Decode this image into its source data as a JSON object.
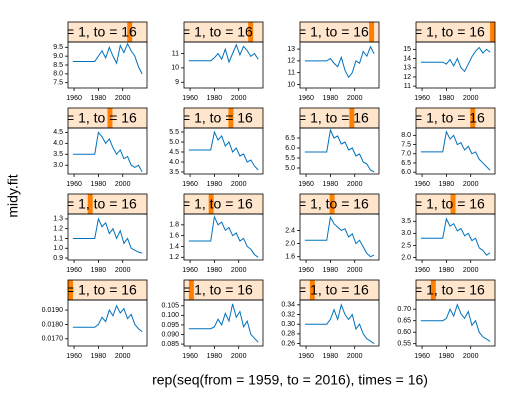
{
  "xlabel": "rep(seq(from = 1959, to = 2016), times = 16)",
  "ylabel": "midy.fit",
  "levels": 16,
  "chart_data": [
    {
      "type": "line",
      "strip": "= 1, to = 16",
      "level": 13,
      "x": [
        1959,
        1962,
        1965,
        1968,
        1971,
        1974,
        1977,
        1980,
        1983,
        1986,
        1989,
        1992,
        1995,
        1998,
        2001,
        2004,
        2007,
        2010,
        2013,
        2016
      ],
      "series": [
        {
          "color": "#0072bd",
          "values": [
            8.7,
            8.7,
            8.7,
            8.7,
            8.7,
            8.7,
            8.7,
            9.0,
            9.3,
            8.9,
            9.5,
            9.0,
            8.6,
            9.6,
            9.2,
            9.7,
            9.3,
            9.0,
            8.4,
            8.0
          ]
        }
      ],
      "xlim": [
        1955,
        2020
      ],
      "xticks": [
        1960,
        1980,
        2000
      ],
      "ylim": [
        7.2,
        9.8
      ],
      "yticks": [
        7.5,
        {
          "value": 8,
          "label": "8.0"
        },
        8.5,
        {
          "value": 9,
          "label": "9.0"
        },
        9.5
      ]
    },
    {
      "type": "line",
      "strip": "= 1, to = 16",
      "level": 14,
      "x": [
        1959,
        1962,
        1965,
        1968,
        1971,
        1974,
        1977,
        1980,
        1983,
        1986,
        1989,
        1992,
        1995,
        1998,
        2001,
        2004,
        2007,
        2010,
        2013,
        2016
      ],
      "series": [
        {
          "color": "#0072bd",
          "values": [
            10.5,
            10.5,
            10.5,
            10.5,
            10.5,
            10.5,
            10.5,
            10.7,
            11.0,
            10.6,
            11.3,
            10.4,
            11.0,
            11.6,
            10.9,
            11.5,
            11.2,
            10.8,
            11.0,
            10.6
          ]
        }
      ],
      "xlim": [
        1955,
        2020
      ],
      "xticks": [
        1960,
        1980,
        2000
      ],
      "ylim": [
        8.6,
        11.8
      ],
      "yticks": [
        9,
        10,
        11
      ]
    },
    {
      "type": "line",
      "strip": "= 1, to = 16",
      "level": 15,
      "x": [
        1959,
        1962,
        1965,
        1968,
        1971,
        1974,
        1977,
        1980,
        1983,
        1986,
        1989,
        1992,
        1995,
        1998,
        2001,
        2004,
        2007,
        2010,
        2013,
        2016
      ],
      "series": [
        {
          "color": "#0072bd",
          "values": [
            12,
            12,
            12,
            12,
            12,
            12,
            12,
            12.2,
            11.8,
            11.5,
            12.3,
            11.2,
            10.6,
            11.0,
            12.0,
            11.8,
            12.8,
            12.4,
            13.2,
            12.6
          ]
        }
      ],
      "xlim": [
        1955,
        2020
      ],
      "xticks": [
        1960,
        1980,
        2000
      ],
      "ylim": [
        9.7,
        13.6
      ],
      "yticks": [
        10,
        11,
        12,
        13
      ]
    },
    {
      "type": "line",
      "strip": "= 1, to = 16",
      "level": 16,
      "x": [
        1959,
        1962,
        1965,
        1968,
        1971,
        1974,
        1977,
        1980,
        1983,
        1986,
        1989,
        1992,
        1995,
        1998,
        2001,
        2004,
        2007,
        2010,
        2013,
        2016
      ],
      "series": [
        {
          "color": "#0072bd",
          "values": [
            13.6,
            13.6,
            13.6,
            13.6,
            13.6,
            13.6,
            13.6,
            13.4,
            13.9,
            13.2,
            14.0,
            13.0,
            12.6,
            13.4,
            14.2,
            14.8,
            15.2,
            14.6,
            15.0,
            14.7
          ]
        }
      ],
      "xlim": [
        1955,
        2020
      ],
      "xticks": [
        1960,
        1980,
        2000
      ],
      "ylim": [
        10.8,
        15.8
      ],
      "yticks": [
        11,
        12,
        13,
        14,
        15
      ]
    },
    {
      "type": "line",
      "strip": "= 1, to = 16",
      "level": 9,
      "x": [
        1959,
        1962,
        1965,
        1968,
        1971,
        1974,
        1977,
        1980,
        1983,
        1986,
        1989,
        1992,
        1995,
        1998,
        2001,
        2004,
        2007,
        2010,
        2013,
        2016
      ],
      "series": [
        {
          "color": "#0072bd",
          "values": [
            3.5,
            3.5,
            3.5,
            3.5,
            3.5,
            3.5,
            3.5,
            4.5,
            4.3,
            4.0,
            4.2,
            3.8,
            3.5,
            3.7,
            3.3,
            3.4,
            3.0,
            2.9,
            3.0,
            2.7
          ]
        }
      ],
      "xlim": [
        1955,
        2020
      ],
      "xticks": [
        1960,
        1980,
        2000
      ],
      "ylim": [
        2.6,
        4.7
      ],
      "yticks": [
        {
          "value": 3,
          "label": "3.0"
        },
        3.5,
        {
          "value": 4,
          "label": "4.0"
        },
        4.5
      ]
    },
    {
      "type": "line",
      "strip": "= 1, to = 16",
      "level": 10,
      "x": [
        1959,
        1962,
        1965,
        1968,
        1971,
        1974,
        1977,
        1980,
        1983,
        1986,
        1989,
        1992,
        1995,
        1998,
        2001,
        2004,
        2007,
        2010,
        2013,
        2016
      ],
      "series": [
        {
          "color": "#0072bd",
          "values": [
            4.6,
            4.6,
            4.6,
            4.6,
            4.6,
            4.6,
            4.6,
            5.5,
            5.1,
            5.3,
            4.8,
            5.0,
            4.5,
            4.7,
            4.3,
            4.4,
            4.0,
            4.1,
            3.8,
            3.6
          ]
        }
      ],
      "xlim": [
        1955,
        2020
      ],
      "xticks": [
        1960,
        1980,
        2000
      ],
      "ylim": [
        3.4,
        5.7
      ],
      "yticks": [
        3.5,
        {
          "value": 4,
          "label": "4.0"
        },
        4.5,
        {
          "value": 5,
          "label": "5.0"
        },
        5.5
      ]
    },
    {
      "type": "line",
      "strip": "= 1, to = 16",
      "level": 11,
      "x": [
        1959,
        1962,
        1965,
        1968,
        1971,
        1974,
        1977,
        1980,
        1983,
        1986,
        1989,
        1992,
        1995,
        1998,
        2001,
        2004,
        2007,
        2010,
        2013,
        2016
      ],
      "series": [
        {
          "color": "#0072bd",
          "values": [
            5.8,
            5.8,
            5.8,
            5.8,
            5.8,
            5.8,
            5.8,
            6.9,
            6.5,
            6.6,
            6.2,
            6.3,
            5.9,
            6.0,
            5.6,
            5.7,
            5.3,
            5.2,
            4.9,
            4.8
          ]
        }
      ],
      "xlim": [
        1955,
        2020
      ],
      "xticks": [
        1960,
        1980,
        2000
      ],
      "ylim": [
        4.7,
        7.0
      ],
      "yticks": [
        {
          "value": 5,
          "label": "5.0"
        },
        5.5,
        {
          "value": 6,
          "label": "6.0"
        },
        6.5
      ]
    },
    {
      "type": "line",
      "strip": "= 1, to = 16",
      "level": 12,
      "x": [
        1959,
        1962,
        1965,
        1968,
        1971,
        1974,
        1977,
        1980,
        1983,
        1986,
        1989,
        1992,
        1995,
        1998,
        2001,
        2004,
        2007,
        2010,
        2013,
        2016
      ],
      "series": [
        {
          "color": "#0072bd",
          "values": [
            7.1,
            7.1,
            7.1,
            7.1,
            7.1,
            7.1,
            7.1,
            8.2,
            7.8,
            8.0,
            7.5,
            7.6,
            7.2,
            7.4,
            7.0,
            7.1,
            6.7,
            6.5,
            6.3,
            6.1
          ]
        }
      ],
      "xlim": [
        1955,
        2020
      ],
      "xticks": [
        1960,
        1980,
        2000
      ],
      "ylim": [
        5.9,
        8.4
      ],
      "yticks": [
        {
          "value": 6,
          "label": "6.0"
        },
        6.5,
        {
          "value": 7,
          "label": "7.0"
        },
        7.5,
        {
          "value": 8,
          "label": "8.0"
        }
      ]
    },
    {
      "type": "line",
      "strip": "= 1, to = 16",
      "level": 5,
      "x": [
        1959,
        1962,
        1965,
        1968,
        1971,
        1974,
        1977,
        1980,
        1983,
        1986,
        1989,
        1992,
        1995,
        1998,
        2001,
        2004,
        2007,
        2010,
        2013,
        2016
      ],
      "series": [
        {
          "color": "#0072bd",
          "values": [
            1.1,
            1.1,
            1.1,
            1.1,
            1.1,
            1.1,
            1.1,
            1.3,
            1.22,
            1.26,
            1.15,
            1.2,
            1.1,
            1.18,
            1.05,
            1.1,
            1.0,
            0.98,
            0.96,
            0.95
          ]
        }
      ],
      "xlim": [
        1955,
        2020
      ],
      "xticks": [
        1960,
        1980,
        2000
      ],
      "ylim": [
        0.88,
        1.35
      ],
      "yticks": [
        0.9,
        {
          "value": 1,
          "label": "1.0"
        },
        1.1,
        1.2,
        1.3
      ]
    },
    {
      "type": "line",
      "strip": "= 1, to = 16",
      "level": 6,
      "x": [
        1959,
        1962,
        1965,
        1968,
        1971,
        1974,
        1977,
        1980,
        1983,
        1986,
        1989,
        1992,
        1995,
        1998,
        2001,
        2004,
        2007,
        2010,
        2013,
        2016
      ],
      "series": [
        {
          "color": "#0072bd",
          "values": [
            1.5,
            1.5,
            1.5,
            1.5,
            1.5,
            1.5,
            1.5,
            1.95,
            1.8,
            1.85,
            1.7,
            1.75,
            1.6,
            1.65,
            1.5,
            1.55,
            1.4,
            1.35,
            1.25,
            1.2
          ]
        }
      ],
      "xlim": [
        1955,
        2020
      ],
      "xticks": [
        1960,
        1980,
        2000
      ],
      "ylim": [
        1.15,
        2.0
      ],
      "yticks": [
        1.2,
        1.4,
        1.6,
        1.8
      ]
    },
    {
      "type": "line",
      "strip": "= 1, to = 16",
      "level": 7,
      "x": [
        1959,
        1962,
        1965,
        1968,
        1971,
        1974,
        1977,
        1980,
        1983,
        1986,
        1989,
        1992,
        1995,
        1998,
        2001,
        2004,
        2007,
        2010,
        2013,
        2016
      ],
      "series": [
        {
          "color": "#0072bd",
          "values": [
            2.1,
            2.1,
            2.1,
            2.1,
            2.1,
            2.1,
            2.1,
            2.8,
            2.6,
            2.5,
            2.4,
            2.45,
            2.2,
            2.3,
            2.0,
            2.1,
            1.9,
            1.7,
            1.6,
            1.65
          ]
        }
      ],
      "xlim": [
        1955,
        2020
      ],
      "xticks": [
        1960,
        1980,
        2000
      ],
      "ylim": [
        1.5,
        2.9
      ],
      "yticks": [
        1.6,
        {
          "value": 2,
          "label": "2.0"
        },
        2.4
      ]
    },
    {
      "type": "line",
      "strip": "= 1, to = 16",
      "level": 8,
      "x": [
        1959,
        1962,
        1965,
        1968,
        1971,
        1974,
        1977,
        1980,
        1983,
        1986,
        1989,
        1992,
        1995,
        1998,
        2001,
        2004,
        2007,
        2010,
        2013,
        2016
      ],
      "series": [
        {
          "color": "#0072bd",
          "values": [
            2.8,
            2.8,
            2.8,
            2.8,
            2.8,
            2.8,
            2.8,
            3.6,
            3.3,
            3.4,
            3.1,
            3.2,
            2.9,
            3.0,
            2.7,
            2.8,
            2.4,
            2.3,
            2.1,
            2.2
          ]
        }
      ],
      "xlim": [
        1955,
        2020
      ],
      "xticks": [
        1960,
        1980,
        2000
      ],
      "ylim": [
        1.9,
        3.8
      ],
      "yticks": [
        {
          "value": 2,
          "label": "2.0"
        },
        2.5,
        {
          "value": 3,
          "label": "3.0"
        },
        3.5
      ]
    },
    {
      "type": "line",
      "strip": "= 1, to = 16",
      "level": 1,
      "x": [
        1959,
        1962,
        1965,
        1968,
        1971,
        1974,
        1977,
        1980,
        1983,
        1986,
        1989,
        1992,
        1995,
        1998,
        2001,
        2004,
        2007,
        2010,
        2013,
        2016
      ],
      "series": [
        {
          "color": "#0072bd",
          "values": [
            0.0178,
            0.0178,
            0.0178,
            0.0178,
            0.0178,
            0.0178,
            0.0178,
            0.018,
            0.0185,
            0.0182,
            0.019,
            0.0186,
            0.0193,
            0.0188,
            0.0191,
            0.0184,
            0.0187,
            0.018,
            0.0177,
            0.0175
          ]
        }
      ],
      "xlim": [
        1955,
        2020
      ],
      "xticks": [
        1960,
        1980,
        2000
      ],
      "ylim": [
        0.0165,
        0.0197
      ],
      "yticks": [
        {
          "value": 0.017,
          "label": "0.0170"
        },
        {
          "value": 0.018,
          "label": "0.0180"
        },
        {
          "value": 0.019,
          "label": "0.0190"
        }
      ]
    },
    {
      "type": "line",
      "strip": "= 1, to = 16",
      "level": 2,
      "x": [
        1959,
        1962,
        1965,
        1968,
        1971,
        1974,
        1977,
        1980,
        1983,
        1986,
        1989,
        1992,
        1995,
        1998,
        2001,
        2004,
        2007,
        2010,
        2013,
        2016
      ],
      "series": [
        {
          "color": "#0072bd",
          "values": [
            0.093,
            0.093,
            0.093,
            0.093,
            0.093,
            0.093,
            0.093,
            0.094,
            0.098,
            0.095,
            0.101,
            0.097,
            0.106,
            0.099,
            0.102,
            0.094,
            0.097,
            0.09,
            0.088,
            0.086
          ]
        }
      ],
      "xlim": [
        1955,
        2020
      ],
      "xticks": [
        1960,
        1980,
        2000
      ],
      "ylim": [
        0.084,
        0.108
      ],
      "yticks": [
        0.085,
        {
          "value": 0.09,
          "label": "0.090"
        },
        0.095,
        {
          "value": 0.1,
          "label": "0.100"
        },
        0.105
      ]
    },
    {
      "type": "line",
      "strip": "= 1, to = 16",
      "level": 3,
      "x": [
        1959,
        1962,
        1965,
        1968,
        1971,
        1974,
        1977,
        1980,
        1983,
        1986,
        1989,
        1992,
        1995,
        1998,
        2001,
        2004,
        2007,
        2010,
        2013,
        2016
      ],
      "series": [
        {
          "color": "#0072bd",
          "values": [
            0.3,
            0.3,
            0.3,
            0.3,
            0.3,
            0.3,
            0.3,
            0.31,
            0.33,
            0.31,
            0.34,
            0.32,
            0.31,
            0.32,
            0.29,
            0.3,
            0.28,
            0.27,
            0.265,
            0.26
          ]
        }
      ],
      "xlim": [
        1955,
        2020
      ],
      "xticks": [
        1960,
        1980,
        2000
      ],
      "ylim": [
        0.255,
        0.35
      ],
      "yticks": [
        0.26,
        0.28,
        {
          "value": 0.3,
          "label": "0.30"
        },
        0.32,
        0.34
      ]
    },
    {
      "type": "line",
      "strip": "= 1, to = 16",
      "level": 4,
      "x": [
        1959,
        1962,
        1965,
        1968,
        1971,
        1974,
        1977,
        1980,
        1983,
        1986,
        1989,
        1992,
        1995,
        1998,
        2001,
        2004,
        2007,
        2010,
        2013,
        2016
      ],
      "series": [
        {
          "color": "#0072bd",
          "values": [
            0.65,
            0.65,
            0.65,
            0.65,
            0.65,
            0.65,
            0.65,
            0.66,
            0.7,
            0.67,
            0.72,
            0.68,
            0.66,
            0.69,
            0.63,
            0.65,
            0.6,
            0.58,
            0.57,
            0.56
          ]
        }
      ],
      "xlim": [
        1955,
        2020
      ],
      "xticks": [
        1960,
        1980,
        2000
      ],
      "ylim": [
        0.54,
        0.74
      ],
      "yticks": [
        0.55,
        {
          "value": 0.6,
          "label": "0.60"
        },
        0.65,
        {
          "value": 0.7,
          "label": "0.70"
        }
      ]
    }
  ]
}
